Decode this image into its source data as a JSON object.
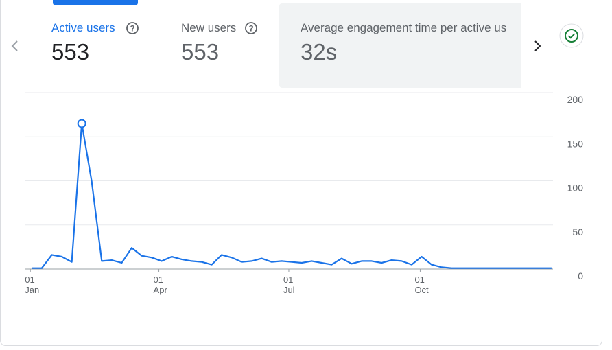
{
  "tabs": [
    {
      "label": "Active users",
      "value": "553"
    },
    {
      "label": "New users",
      "value": "553"
    },
    {
      "label": "Average engagement time per active us",
      "value": "32s"
    }
  ],
  "chart_data": {
    "type": "line",
    "color": "#1a73e8",
    "grid": true,
    "highlighted_point": 5,
    "x": [
      1,
      8,
      15,
      22,
      29,
      36,
      43,
      50,
      57,
      64,
      71,
      78,
      85,
      92,
      99,
      106,
      113,
      120,
      127,
      134,
      141,
      148,
      155,
      162,
      169,
      176,
      183,
      190,
      197,
      204,
      211,
      218,
      225,
      232,
      239,
      246,
      253,
      260,
      267,
      274,
      281,
      288,
      295,
      302,
      309,
      316,
      323,
      330,
      337,
      344,
      351,
      358,
      365
    ],
    "values": [
      1,
      1,
      16,
      14,
      8,
      165,
      99,
      9,
      10,
      7,
      24,
      15,
      13,
      9,
      14,
      11,
      9,
      8,
      5,
      16,
      13,
      8,
      9,
      12,
      8,
      9,
      8,
      7,
      9,
      7,
      5,
      12,
      6,
      9,
      9,
      7,
      10,
      9,
      5,
      14,
      5,
      2,
      1,
      1,
      1,
      1,
      1,
      1,
      1,
      1,
      1,
      1,
      1
    ],
    "xlim": [
      -3,
      366
    ],
    "xticks": [
      {
        "value": 0,
        "label": "01 Jan"
      },
      {
        "value": 90,
        "label": "01 Apr"
      },
      {
        "value": 181,
        "label": "01 Jul"
      },
      {
        "value": 273,
        "label": "01 Oct"
      }
    ],
    "ylim": [
      0,
      200
    ],
    "yticks": [
      0,
      50,
      100,
      150,
      200
    ]
  }
}
